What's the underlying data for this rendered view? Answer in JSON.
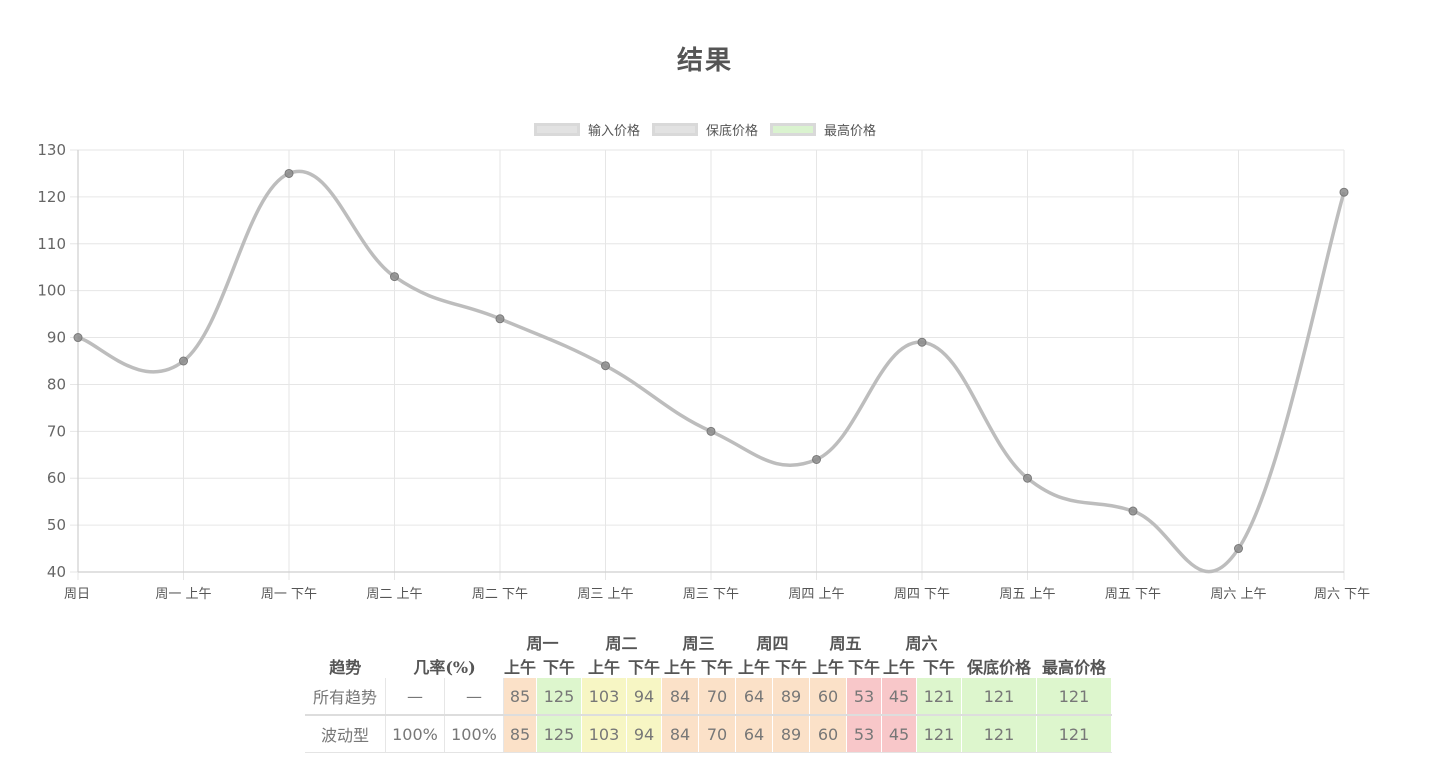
{
  "title": "结果",
  "colors": {
    "line": "#bdbdbd",
    "point": "#8c8c8c",
    "grid": "#e6e6e6",
    "cell_orange": "#fbe1c8",
    "cell_green": "#ddf6cd",
    "cell_yellow": "#f7f6c4",
    "cell_red": "#f8c7c9"
  },
  "legend": [
    {
      "label": "输入价格",
      "color": "#e2e2e2"
    },
    {
      "label": "保底价格",
      "color": "#e2e2e2"
    },
    {
      "label": "最高价格",
      "color": "#daf3cf"
    }
  ],
  "chart_data": {
    "type": "line",
    "categories": [
      "周日",
      "周一 上午",
      "周一 下午",
      "周二 上午",
      "周二 下午",
      "周三 上午",
      "周三 下午",
      "周四 上午",
      "周四 下午",
      "周五 上午",
      "周五 下午",
      "周六 上午",
      "周六 下午"
    ],
    "series": [
      {
        "name": "输入价格",
        "values": [
          90,
          85,
          125,
          103,
          94,
          84,
          70,
          64,
          89,
          60,
          53,
          45,
          121
        ]
      }
    ],
    "yticks": [
      130,
      120,
      110,
      100,
      90,
      80,
      70,
      60,
      50,
      40
    ],
    "ylim": [
      40,
      130
    ],
    "grid": true,
    "legend_position": "top"
  },
  "table": {
    "headers": {
      "pattern": "趋势",
      "probability": "几率(%)",
      "days": [
        "周一",
        "周二",
        "周三",
        "周四",
        "周五",
        "周六"
      ],
      "am": "上午",
      "pm": "下午",
      "guaranteed_min": "保底价格",
      "max": "最高价格"
    },
    "rows": [
      {
        "pattern": "所有趋势",
        "prob": [
          "—",
          "—"
        ],
        "prices": [
          "85",
          "125",
          "103",
          "94",
          "84",
          "70",
          "64",
          "89",
          "60",
          "53",
          "45",
          "121"
        ],
        "colors": [
          "orange",
          "green",
          "yellow",
          "yellow",
          "orange",
          "orange",
          "orange",
          "orange",
          "orange",
          "red",
          "red",
          "green"
        ],
        "min": "121",
        "max": "121"
      },
      {
        "pattern": "波动型",
        "prob": [
          "100%",
          "100%"
        ],
        "prices": [
          "85",
          "125",
          "103",
          "94",
          "84",
          "70",
          "64",
          "89",
          "60",
          "53",
          "45",
          "121"
        ],
        "colors": [
          "orange",
          "green",
          "yellow",
          "yellow",
          "orange",
          "orange",
          "orange",
          "orange",
          "orange",
          "red",
          "red",
          "green"
        ],
        "min": "121",
        "max": "121"
      }
    ]
  }
}
